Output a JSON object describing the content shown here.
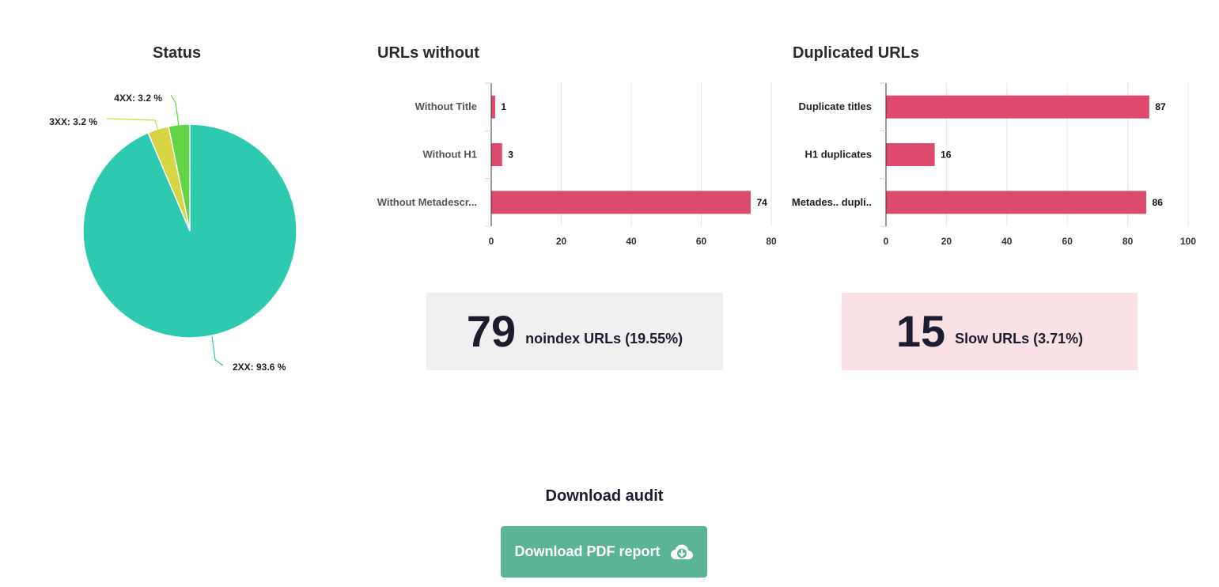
{
  "charts": {
    "status_title": "Status",
    "urls_without_title": "URLs without",
    "duplicated_title": "Duplicated URLs"
  },
  "chart_data": [
    {
      "type": "pie",
      "title": "Status",
      "slices": [
        {
          "label": "2XX: 93.6 %",
          "value": 93.6,
          "color": "#2ecab0"
        },
        {
          "label": "3XX: 3.2 %",
          "value": 3.2,
          "color": "#d7d642"
        },
        {
          "label": "4XX: 3.2 %",
          "value": 3.2,
          "color": "#62d544"
        }
      ]
    },
    {
      "type": "bar",
      "orientation": "horizontal",
      "title": "URLs without",
      "categories": [
        "Without Title",
        "Without H1",
        "Without Metadescr..."
      ],
      "values": [
        1,
        3,
        74
      ],
      "xlim": [
        0,
        80
      ],
      "ticks": [
        0,
        20,
        40,
        60,
        80
      ],
      "color": "#dd4a6d",
      "grid": true
    },
    {
      "type": "bar",
      "orientation": "horizontal",
      "title": "Duplicated URLs",
      "categories": [
        "Duplicate titles",
        "H1 duplicates",
        "Metades.. dupli.."
      ],
      "values": [
        87,
        16,
        86
      ],
      "xlim": [
        0,
        100
      ],
      "ticks": [
        0,
        20,
        40,
        60,
        80,
        100
      ],
      "color": "#dd4a6d",
      "grid": true
    }
  ],
  "stats": {
    "noindex": {
      "number": "79",
      "label": "noindex URLs (19.55%)"
    },
    "slow": {
      "number": "15",
      "label": "Slow URLs (3.71%)"
    }
  },
  "download": {
    "heading": "Download audit",
    "button_label": "Download PDF report",
    "icon": "cloud-download-icon"
  }
}
